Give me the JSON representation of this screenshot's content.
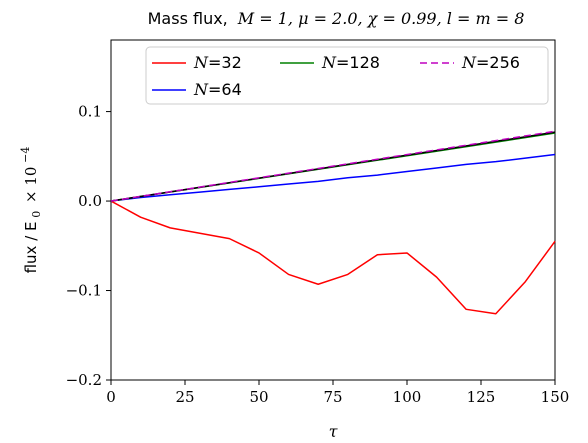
{
  "chart_data": {
    "type": "line",
    "title": {
      "prefix": "Mass flux,",
      "math": "M = 1, μ = 2.0, χ = 0.99, l = m = 8"
    },
    "xlabel": "τ",
    "ylabel": {
      "text": "flux / E",
      "sub": "0",
      "times": "× 10",
      "exp": "−4"
    },
    "xlim": [
      0,
      150
    ],
    "ylim": [
      -0.2,
      0.18
    ],
    "xticks": [
      0,
      25,
      50,
      75,
      100,
      125,
      150
    ],
    "yticks": [
      -0.2,
      -0.1,
      0.0,
      0.1
    ],
    "ytick_labels": [
      "−0.2",
      "−0.1",
      "0.0",
      "0.1"
    ],
    "grid": false,
    "legend_placement": "top-right",
    "series": [
      {
        "name": "N=32",
        "color": "#ff0000",
        "style": "solid",
        "x": [
          0,
          10,
          20,
          30,
          40,
          50,
          60,
          70,
          80,
          90,
          100,
          110,
          120,
          130,
          140,
          150
        ],
        "y": [
          0.0,
          -0.018,
          -0.03,
          -0.036,
          -0.042,
          -0.058,
          -0.082,
          -0.093,
          -0.082,
          -0.06,
          -0.058,
          -0.085,
          -0.121,
          -0.126,
          -0.09,
          -0.045
        ]
      },
      {
        "name": "N=64",
        "color": "#0000ff",
        "style": "solid",
        "x": [
          0,
          10,
          20,
          30,
          40,
          50,
          60,
          70,
          80,
          90,
          100,
          110,
          120,
          130,
          140,
          150
        ],
        "y": [
          0.0,
          0.004,
          0.007,
          0.01,
          0.013,
          0.016,
          0.019,
          0.022,
          0.026,
          0.029,
          0.033,
          0.037,
          0.041,
          0.044,
          0.048,
          0.052
        ]
      },
      {
        "name": "N=128",
        "color": "#008000",
        "style": "solid",
        "x": [
          0,
          150
        ],
        "y": [
          0.0,
          0.076
        ]
      },
      {
        "name": "N=256",
        "color": "#bf00bf",
        "style": "dashed",
        "x": [
          0,
          150
        ],
        "y": [
          0.0,
          0.078
        ]
      }
    ],
    "extra_lines": [
      {
        "color": "#000000",
        "style": "solid",
        "x": [
          0,
          150
        ],
        "y": [
          0.0,
          0.077
        ]
      }
    ],
    "legend_order": [
      "N=32",
      "N=128",
      "N=256",
      "N=64"
    ]
  }
}
